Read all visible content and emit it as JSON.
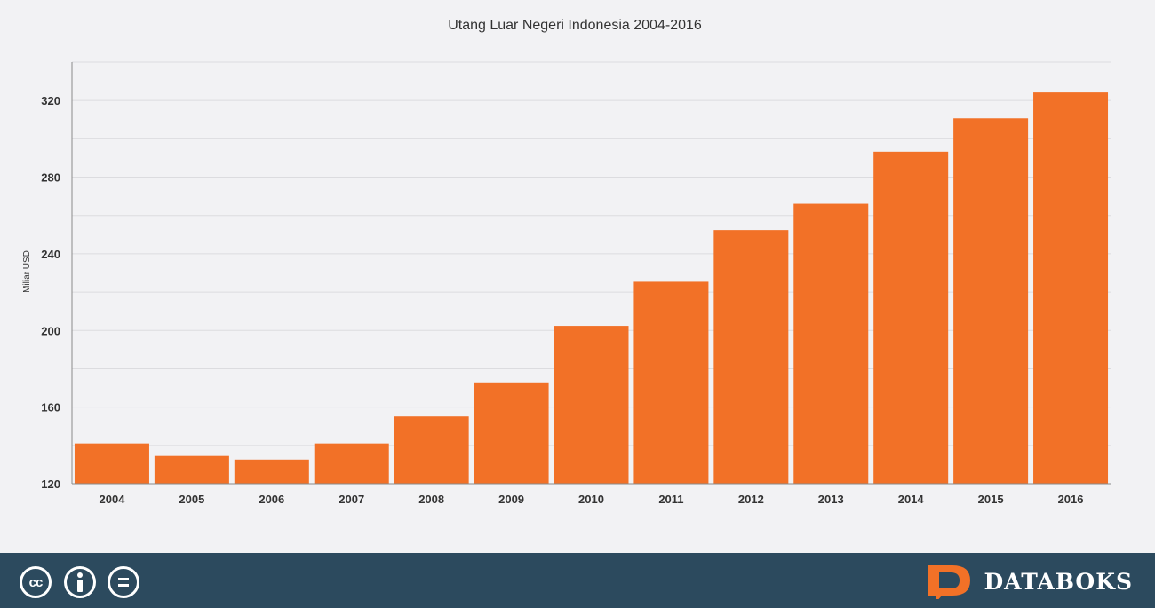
{
  "chart_data": {
    "type": "bar",
    "title": "Utang Luar Negeri Indonesia 2004-2016",
    "xlabel": "",
    "ylabel": "Miliar USD",
    "categories": [
      "2004",
      "2005",
      "2006",
      "2007",
      "2008",
      "2009",
      "2010",
      "2011",
      "2012",
      "2013",
      "2014",
      "2015",
      "2016"
    ],
    "values": [
      141,
      134.5,
      132.6,
      141,
      155.1,
      172.9,
      202.4,
      225.4,
      252.4,
      266.1,
      293.3,
      310.7,
      324.2
    ],
    "ylim": [
      120,
      340
    ],
    "yticks": [
      120,
      160,
      200,
      240,
      280,
      320
    ],
    "grid": true,
    "bar_color": "#f27127"
  },
  "footer": {
    "cc_label": "cc",
    "brand_name": "DATABOKS",
    "brand_logo_letter": "D",
    "background_color": "#2c4a5e",
    "accent_color": "#f27127",
    "icons": [
      "creative-commons-icon",
      "attribution-icon",
      "no-derivatives-icon",
      "databoks-logo-icon"
    ]
  }
}
